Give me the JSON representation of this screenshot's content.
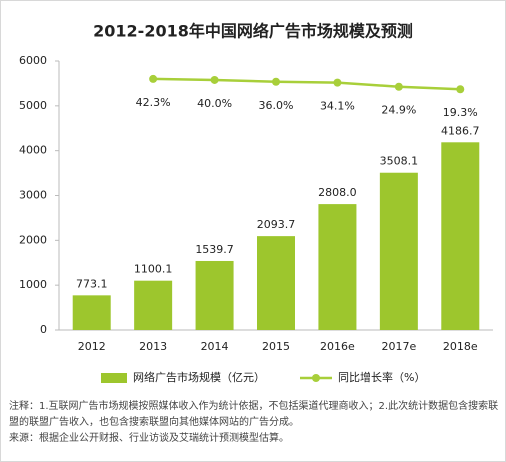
{
  "chart_data": {
    "type": "bar",
    "title": "2012-2018年中国网络广告市场规模及预测",
    "categories": [
      "2012",
      "2013",
      "2014",
      "2015",
      "2016e",
      "2017e",
      "2018e"
    ],
    "series": [
      {
        "name": "网络广告市场规模（亿元）",
        "type": "bar",
        "color": "#9dc62d",
        "values": [
          773.1,
          1100.1,
          1539.7,
          2093.7,
          2808,
          3508.1,
          4186.7
        ],
        "value_labels": [
          "773.1",
          "1100.1",
          "1539.7",
          "2093.7",
          "2808.0",
          "3508.1",
          "4186.7"
        ]
      },
      {
        "name": "同比增长率（%）",
        "type": "line",
        "axis": "y2",
        "color": "#a8cf3a",
        "values": [
          null,
          42.3,
          40.0,
          36.0,
          34.1,
          24.9,
          19.3
        ],
        "value_labels": [
          null,
          "42.3%",
          "40.0%",
          "36.0%",
          "34.1%",
          "24.9%",
          "19.3%"
        ]
      }
    ],
    "ylim": [
      0,
      6000
    ],
    "yticks": [
      0,
      1000,
      2000,
      3000,
      4000,
      5000,
      6000
    ],
    "y2lim": [
      -517.7,
      82.3
    ],
    "legend": "bottom",
    "notes": [
      "注释：1.互联网广告市场规模按照媒体收入作为统计依据，不包括渠道代理商收入；2.此次统计数据包含搜索联盟的联盟广告收入，也包含搜索联盟向其他媒体网站的广告分成。",
      "来源：根据企业公开财报、行业访谈及艾瑞统计预测模型估算。"
    ]
  }
}
